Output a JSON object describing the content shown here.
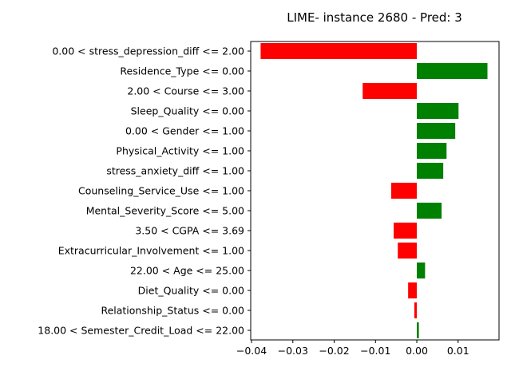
{
  "chart_data": {
    "type": "bar",
    "orientation": "horizontal",
    "title": "LIME- instance 2680 - Pred: 3",
    "xlabel": "",
    "ylabel": "",
    "xlim": [
      -0.0402,
      0.0199
    ],
    "xticks": [
      -0.04,
      -0.03,
      -0.02,
      -0.01,
      0.0,
      0.01
    ],
    "xtick_labels": [
      "−0.04",
      "−0.03",
      "−0.02",
      "−0.01",
      "0.00",
      "0.01"
    ],
    "grid": false,
    "positive_color": "#008000",
    "negative_color": "#ff0000",
    "categories": [
      "0.00 < stress_depression_diff <= 2.00",
      "Residence_Type <= 0.00",
      "2.00 < Course <= 3.00",
      "Sleep_Quality <= 0.00",
      "0.00 < Gender <= 1.00",
      "Physical_Activity <= 1.00",
      "stress_anxiety_diff <= 1.00",
      "Counseling_Service_Use <= 1.00",
      "Mental_Severity_Score <= 5.00",
      "3.50 < CGPA <= 3.69",
      "Extracurricular_Involvement <= 1.00",
      "22.00 < Age <= 25.00",
      "Diet_Quality <= 0.00",
      "Relationship_Status <= 0.00",
      "18.00 < Semester_Credit_Load <= 22.00"
    ],
    "values": [
      -0.0378,
      0.0171,
      -0.0131,
      0.0101,
      0.0093,
      0.0072,
      0.0064,
      -0.0062,
      0.006,
      -0.0056,
      -0.0046,
      0.002,
      -0.0021,
      -0.0006,
      0.0005
    ]
  }
}
